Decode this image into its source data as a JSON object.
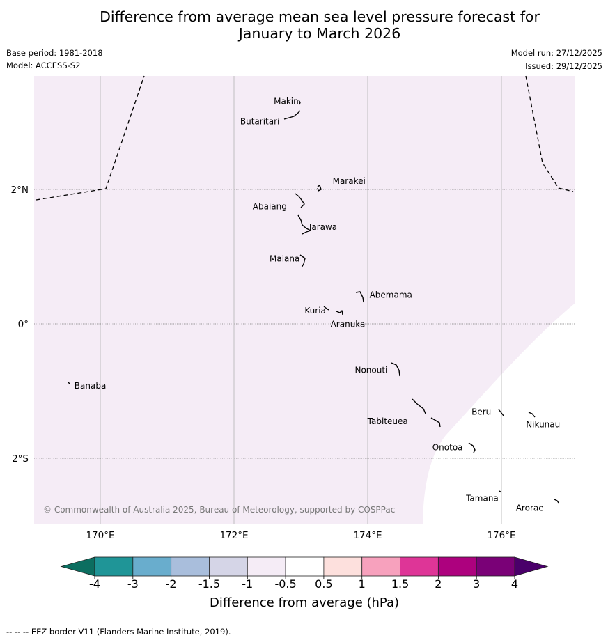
{
  "header": {
    "title_line1": "Difference from average mean sea level pressure forecast for",
    "title_line2": "January to March 2026",
    "base_period": "Base period: 1981-2018",
    "model": "Model: ACCESS-S2",
    "model_run": "Model run: 27/12/2025",
    "issued": "Issued: 29/12/2025"
  },
  "map": {
    "lon_ticks": [
      {
        "value": 170,
        "label": "170°E"
      },
      {
        "value": 172,
        "label": "172°E"
      },
      {
        "value": 174,
        "label": "174°E"
      },
      {
        "value": 176,
        "label": "176°E"
      }
    ],
    "lat_ticks": [
      {
        "value": 2,
        "label": "2°N"
      },
      {
        "value": 0,
        "label": "0°"
      },
      {
        "value": -2,
        "label": "2°S"
      }
    ],
    "places": [
      {
        "name": "Makin",
        "lon": 172.97,
        "lat": 3.33
      },
      {
        "name": "Butaritari",
        "lon": 172.78,
        "lat": 3.01
      },
      {
        "name": "Marakei",
        "lon": 173.35,
        "lat": 2.02
      },
      {
        "name": "Abaiang",
        "lon": 172.8,
        "lat": 1.8
      },
      {
        "name": "Tarawa",
        "lon": 173.0,
        "lat": 1.45
      },
      {
        "name": "Maiana",
        "lon": 173.0,
        "lat": 0.95
      },
      {
        "name": "Abemama",
        "lon": 173.85,
        "lat": 0.4
      },
      {
        "name": "Kuria",
        "lon": 173.4,
        "lat": 0.22
      },
      {
        "name": "Aranuka",
        "lon": 173.6,
        "lat": 0.15
      },
      {
        "name": "Banaba",
        "lon": 169.55,
        "lat": -0.88
      },
      {
        "name": "Nonouti",
        "lon": 174.38,
        "lat": -0.68
      },
      {
        "name": "Tabiteuea",
        "lon": 174.83,
        "lat": -1.4
      },
      {
        "name": "Beru",
        "lon": 175.97,
        "lat": -1.33
      },
      {
        "name": "Nikunau",
        "lon": 176.45,
        "lat": -1.35
      },
      {
        "name": "Onotoa",
        "lon": 175.57,
        "lat": -1.82
      },
      {
        "name": "Tamana",
        "lon": 175.98,
        "lat": -2.5
      },
      {
        "name": "Arorae",
        "lon": 176.82,
        "lat": -2.65
      }
    ],
    "copyright": "© Commonwealth of Australia 2025, Bureau of Meteorology, supported by COSPPac",
    "field_color": "#f5ecf6",
    "background_color": "#ffffff"
  },
  "colorbar": {
    "ticks": [
      "-4",
      "-3",
      "-2",
      "-1.5",
      "-1",
      "-0.5",
      "0.5",
      "1",
      "1.5",
      "2",
      "3",
      "4"
    ],
    "colors": [
      "#0c6e60",
      "#1f9597",
      "#69adcd",
      "#a9bedc",
      "#d5d5e7",
      "#f5ecf6",
      "#ffffff",
      "#fde0dd",
      "#f7a1bd",
      "#de3597",
      "#ad017e",
      "#7a0177",
      "#4a006a"
    ],
    "label": "Difference from average (hPa)"
  },
  "footnote": "--  --  -- EEZ border V11 (Flanders Marine Institute, 2019)."
}
